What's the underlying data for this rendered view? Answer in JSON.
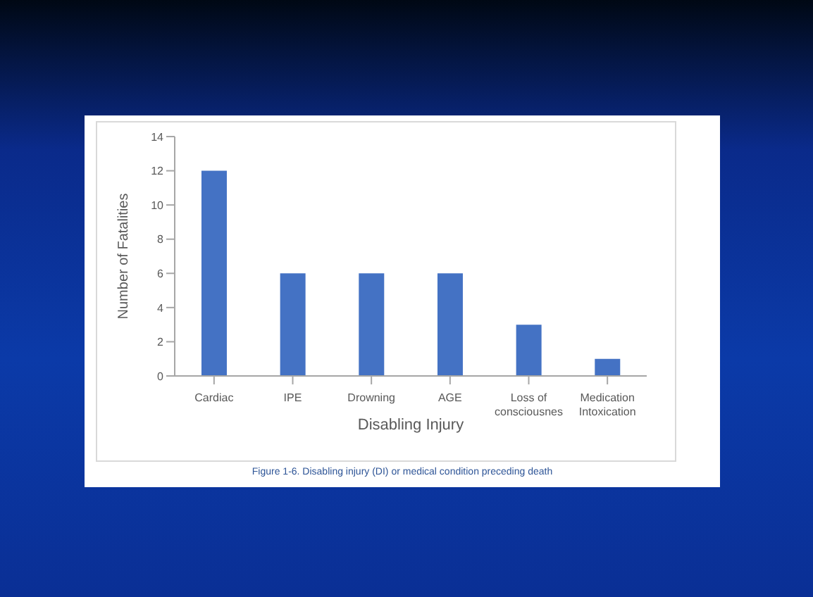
{
  "chart_data": {
    "type": "bar",
    "xlabel": "Disabling Injury",
    "ylabel": "Number of Fatalities",
    "categories": [
      "Cardiac",
      "IPE",
      "Drowning",
      "AGE",
      "Loss of consciousnes",
      "Medication Intoxication"
    ],
    "values": [
      12,
      6,
      6,
      6,
      3,
      1
    ],
    "color": "#4472c4",
    "ylim": [
      0,
      14
    ],
    "yticks": [
      0,
      2,
      4,
      6,
      8,
      10,
      12,
      14
    ],
    "grid": false,
    "annotations": [
      "Figure 1-6. Disabling injury (DI) or medical condition preceding death"
    ]
  }
}
